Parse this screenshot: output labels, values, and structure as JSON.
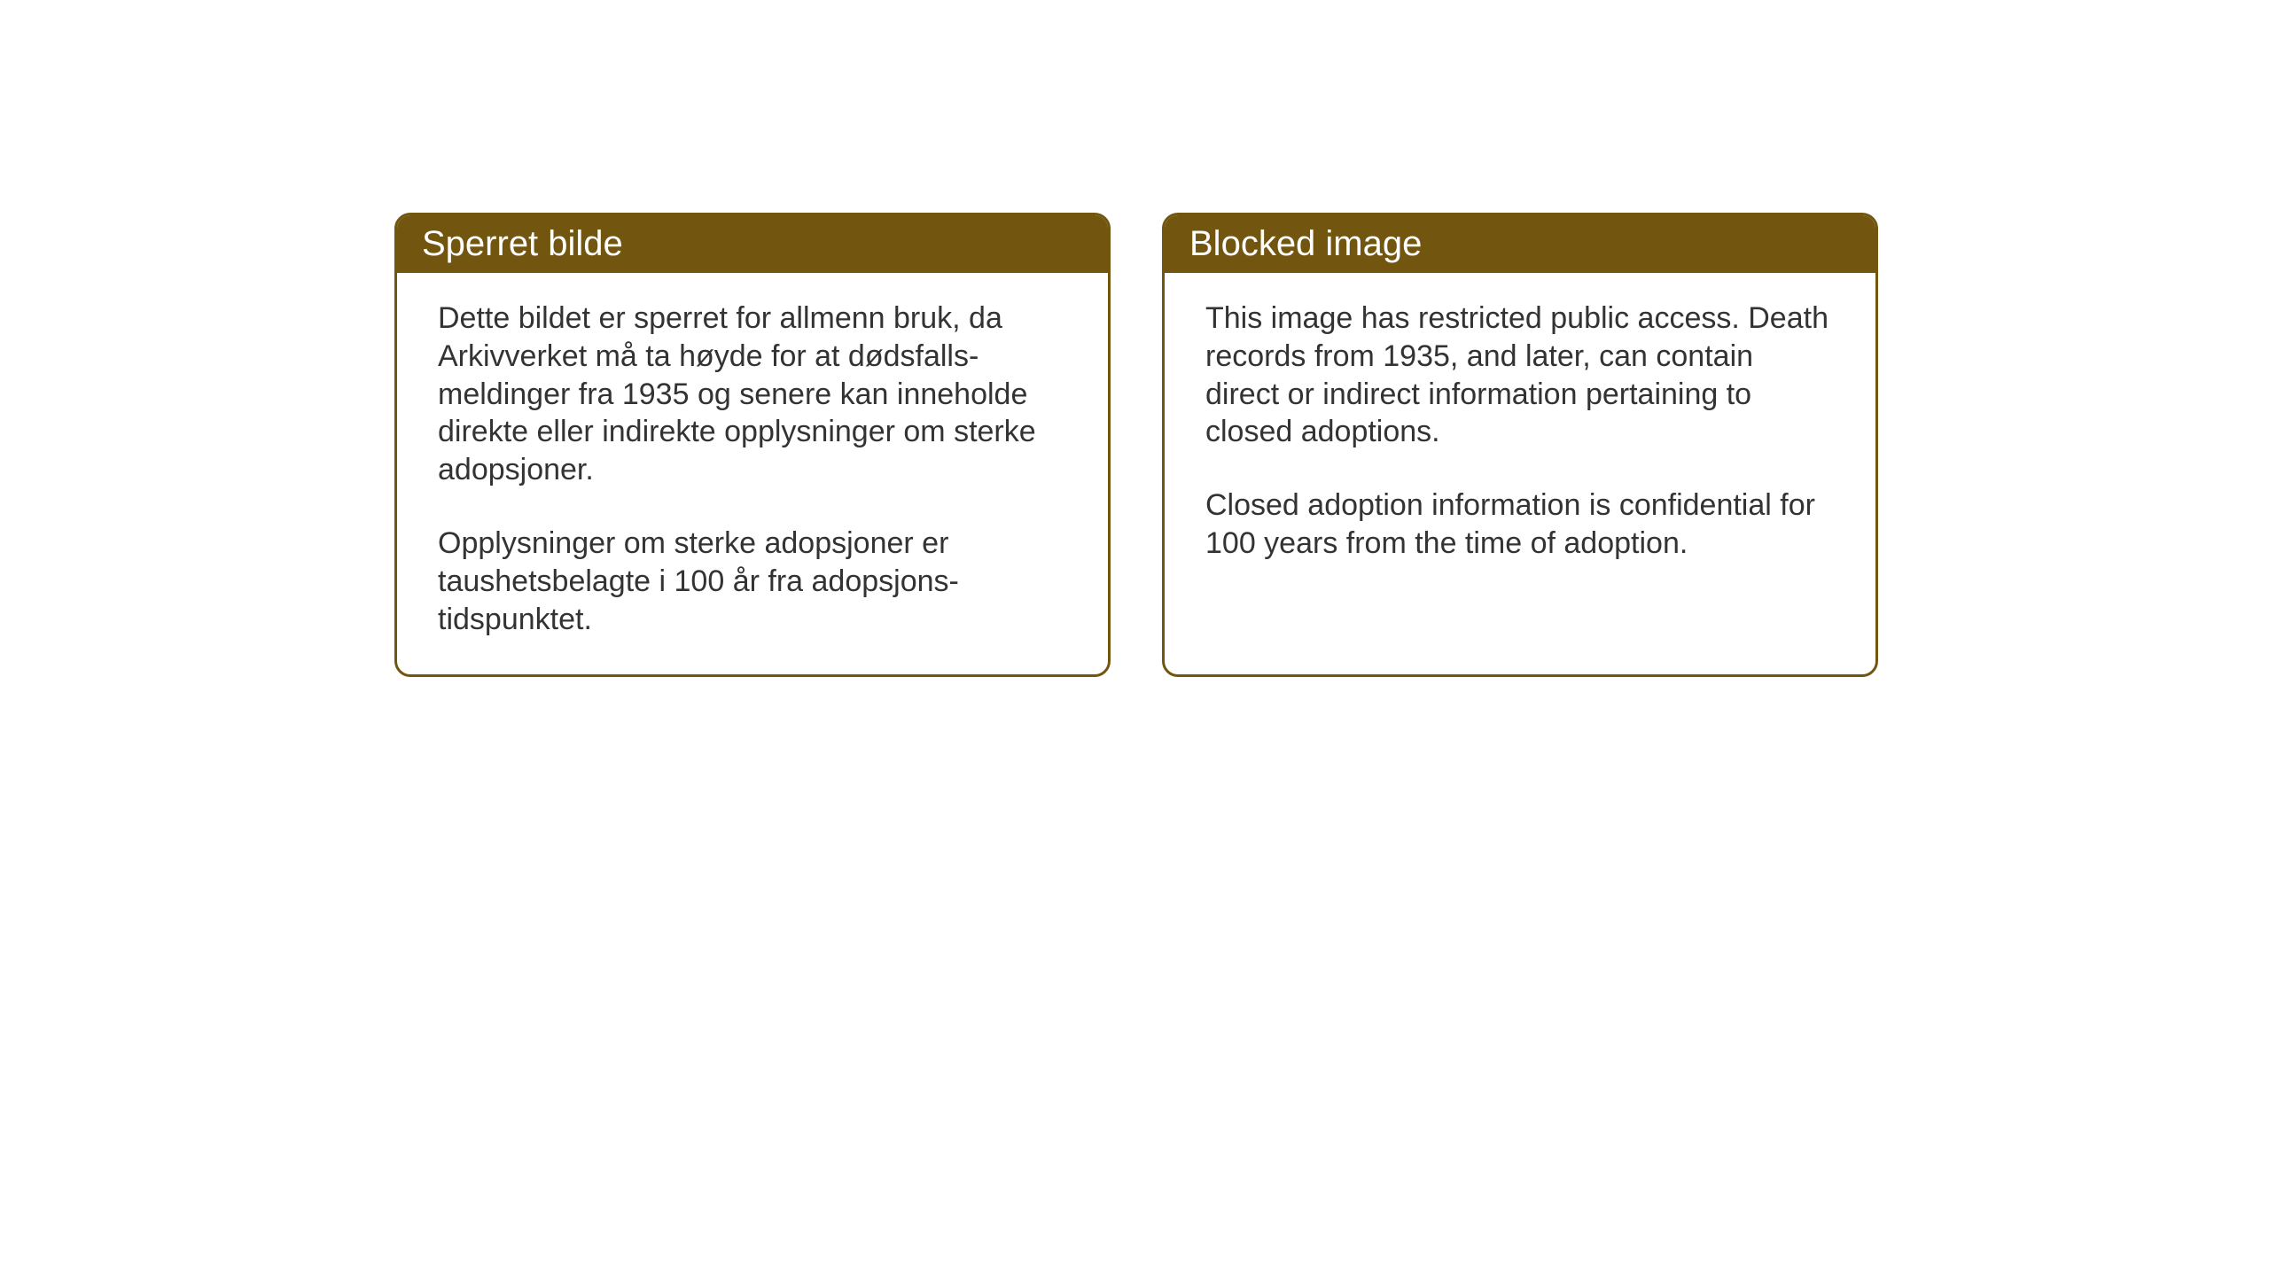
{
  "cards": {
    "norwegian": {
      "title": "Sperret bilde",
      "paragraph1": "Dette bildet er sperret for allmenn bruk, da Arkivverket må ta høyde for at dødsfalls-meldinger fra 1935 og senere kan inneholde direkte eller indirekte opplysninger om sterke adopsjoner.",
      "paragraph2": "Opplysninger om sterke adopsjoner er taushetsbelagte i 100 år fra adopsjons-tidspunktet."
    },
    "english": {
      "title": "Blocked image",
      "paragraph1": "This image has restricted public access. Death records from 1935, and later, can contain direct or indirect information pertaining to closed adoptions.",
      "paragraph2": "Closed adoption information is confidential for 100 years from the time of adoption."
    }
  },
  "styling": {
    "header_background": "#725610",
    "header_text_color": "#ffffff",
    "border_color": "#725610",
    "body_background": "#ffffff",
    "body_text_color": "#333333",
    "title_fontsize": 40,
    "body_fontsize": 34,
    "border_radius": 18,
    "border_width": 3
  }
}
